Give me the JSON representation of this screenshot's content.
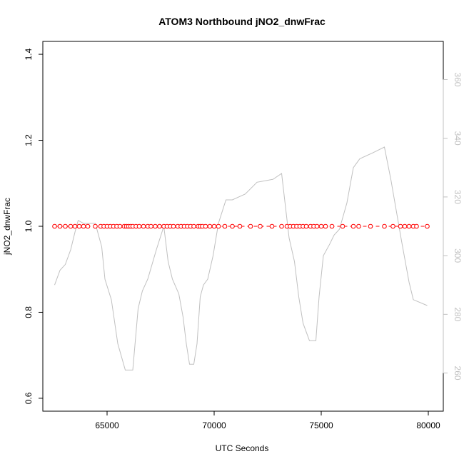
{
  "chart_data": {
    "type": "line",
    "title": "ATOM3 Northbound jNO2_dnwFrac",
    "xlabel": "UTC Seconds",
    "ylabel": "jNO2_dnwFrac",
    "ylabel_right": "",
    "xlim": [
      62000,
      80700
    ],
    "ylim": [
      0.57,
      1.43
    ],
    "ylim_right": [
      247,
      373
    ],
    "x_ticks": [
      65000,
      70000,
      75000,
      80000
    ],
    "x_tick_labels": [
      "65000",
      "70000",
      "75000",
      "80000"
    ],
    "y_ticks": [
      0.6,
      0.8,
      1.0,
      1.2,
      1.4
    ],
    "y_tick_labels": [
      "0.6",
      "0.8",
      "1.0",
      "1.2",
      "1.4"
    ],
    "y_ticks_right": [
      260,
      280,
      300,
      320,
      340,
      360
    ],
    "y_tick_labels_right": [
      "260",
      "280",
      "300",
      "320",
      "340",
      "360"
    ],
    "grid": false,
    "series": [
      {
        "axis": "left",
        "style": "points",
        "color": "#ff0000",
        "x": [
          62550,
          62800,
          63050,
          63300,
          63500,
          63700,
          63900,
          64100,
          64450,
          64700,
          64850,
          65000,
          65150,
          65300,
          65450,
          65600,
          65800,
          65900,
          66000,
          66100,
          66200,
          66350,
          66500,
          66700,
          66900,
          67050,
          67250,
          67450,
          67650,
          67800,
          67950,
          68100,
          68300,
          68450,
          68600,
          68750,
          68900,
          69050,
          69250,
          69350,
          69450,
          69600,
          69800,
          70000,
          70200,
          70500,
          70850,
          71200,
          71700,
          72150,
          72700,
          73150,
          73400,
          73550,
          73700,
          73850,
          74000,
          74150,
          74300,
          74500,
          74650,
          74800,
          75000,
          75200,
          75500,
          76000,
          76500,
          76750,
          77300,
          77950,
          78350,
          78700,
          78900,
          79100,
          79300,
          79450,
          79950
        ],
        "y": [
          1.0,
          1.0,
          1.0,
          1.0,
          1.0,
          1.0,
          1.0,
          1.0,
          1.0,
          1.0,
          1.0,
          1.0,
          1.0,
          1.0,
          1.0,
          1.0,
          1.0,
          1.0,
          1.0,
          1.0,
          1.0,
          1.0,
          1.0,
          1.0,
          1.0,
          1.0,
          1.0,
          1.0,
          1.0,
          1.0,
          1.0,
          1.0,
          1.0,
          1.0,
          1.0,
          1.0,
          1.0,
          1.0,
          1.0,
          1.0,
          1.0,
          1.0,
          1.0,
          1.0,
          1.0,
          1.0,
          1.0,
          1.0,
          1.0,
          1.0,
          1.0,
          1.0,
          1.0,
          1.0,
          1.0,
          1.0,
          1.0,
          1.0,
          1.0,
          1.0,
          1.0,
          1.0,
          1.0,
          1.0,
          1.0,
          1.0,
          1.0,
          1.0,
          1.0,
          1.0,
          1.0,
          1.0,
          1.0,
          1.0,
          1.0,
          1.0,
          1.0
        ]
      },
      {
        "axis": "left",
        "style": "dashed-line",
        "color": "#ff0000",
        "x": [
          62550,
          79950
        ],
        "y": [
          1.0,
          1.0
        ]
      },
      {
        "axis": "right",
        "style": "line",
        "color": "#c0c0c0",
        "x": [
          62550,
          62800,
          63050,
          63300,
          63500,
          63650,
          63900,
          64050,
          64450,
          64750,
          64900,
          65200,
          65500,
          65850,
          66200,
          66450,
          66650,
          66900,
          67300,
          67650,
          67850,
          68050,
          68350,
          68550,
          68700,
          68850,
          69050,
          69200,
          69350,
          69500,
          69700,
          69950,
          70200,
          70550,
          70850,
          71450,
          72000,
          72750,
          73150,
          73500,
          73750,
          73950,
          74150,
          74450,
          74750,
          74900,
          75100,
          75400,
          75600,
          75850,
          76200,
          76500,
          76800,
          77400,
          77950,
          78250,
          78750,
          79100,
          79300,
          79950
        ],
        "y": [
          290,
          295,
          297,
          302,
          308,
          312,
          311,
          311,
          311,
          303,
          292,
          285,
          270,
          261,
          261,
          282,
          288,
          292,
          302,
          310,
          298,
          292,
          287,
          279,
          270,
          263,
          263,
          270,
          286,
          290,
          292,
          300,
          311,
          319,
          319,
          321,
          325,
          326,
          328,
          306,
          298,
          286,
          277,
          271,
          271,
          286,
          300,
          304,
          307,
          309,
          318,
          330,
          333,
          335,
          337,
          326,
          305,
          291,
          285,
          283
        ]
      }
    ]
  }
}
